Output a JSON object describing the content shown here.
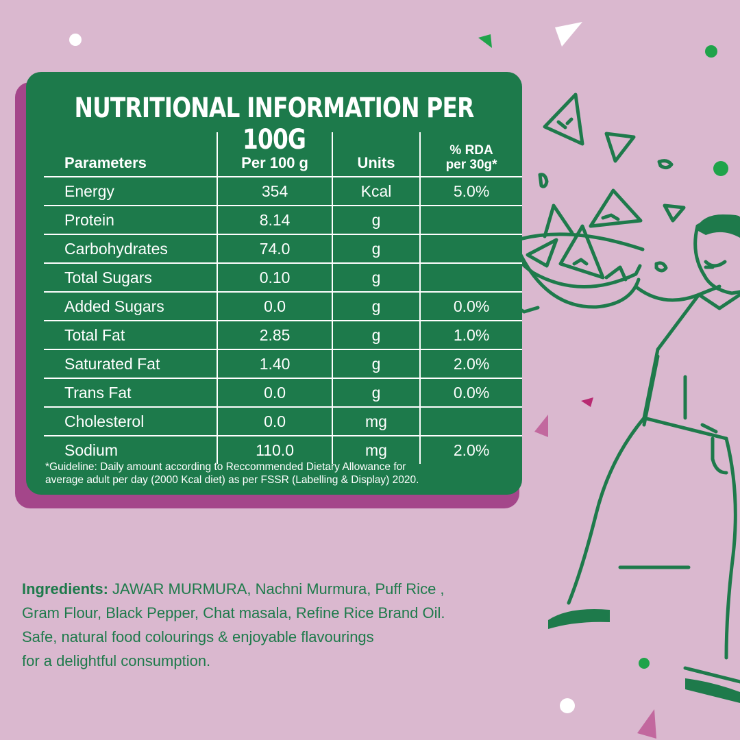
{
  "title": "NUTRITIONAL INFORMATION PER 100G",
  "table": {
    "headers": [
      "Parameters",
      "Per 100 g",
      "Units",
      "% RDA",
      "per 30g*"
    ],
    "rows": [
      {
        "parameter": "Energy",
        "per100": "354",
        "unit": "Kcal",
        "rda": "5.0%"
      },
      {
        "parameter": "Protein",
        "per100": "8.14",
        "unit": "g",
        "rda": ""
      },
      {
        "parameter": "Carbohydrates",
        "per100": "74.0",
        "unit": "g",
        "rda": ""
      },
      {
        "parameter": "Total Sugars",
        "per100": "0.10",
        "unit": "g",
        "rda": ""
      },
      {
        "parameter": "Added Sugars",
        "per100": "0.0",
        "unit": "g",
        "rda": "0.0%"
      },
      {
        "parameter": "Total Fat",
        "per100": "2.85",
        "unit": "g",
        "rda": "1.0%"
      },
      {
        "parameter": "Saturated Fat",
        "per100": "1.40",
        "unit": "g",
        "rda": "2.0%"
      },
      {
        "parameter": "Trans Fat",
        "per100": "0.0",
        "unit": "g",
        "rda": "0.0%"
      },
      {
        "parameter": "Cholesterol",
        "per100": "0.0",
        "unit": "mg",
        "rda": ""
      },
      {
        "parameter": "Sodium",
        "per100": "110.0",
        "unit": "mg",
        "rda": "2.0%"
      }
    ]
  },
  "footnote": {
    "line1": "*Guideline: Daily amount according to Reccommended Dietary Allowance for",
    "line2": "average adult per day (2000 Kcal diet) as per FSSR (Labelling & Display) 2020."
  },
  "ingredients": {
    "label": "Ingredients:",
    "line1": "JAWAR MURMURA, Nachni Murmura, Puff Rice ,",
    "line2": "Gram Flour, Black Pepper, Chat masala, Refine Rice Brand Oil.",
    "line3": "Safe, natural food colourings & enjoyable flavourings",
    "line4": "for a delightful consumption."
  },
  "colors": {
    "background": "#dab8cf",
    "card": "#1d7a4b",
    "card_shadow": "#a4468a",
    "accent_green": "#1e7a4b"
  },
  "icons": [
    "man-holding-bowl-illustration",
    "snack-triangle-icon",
    "confetti-dot-icon"
  ]
}
